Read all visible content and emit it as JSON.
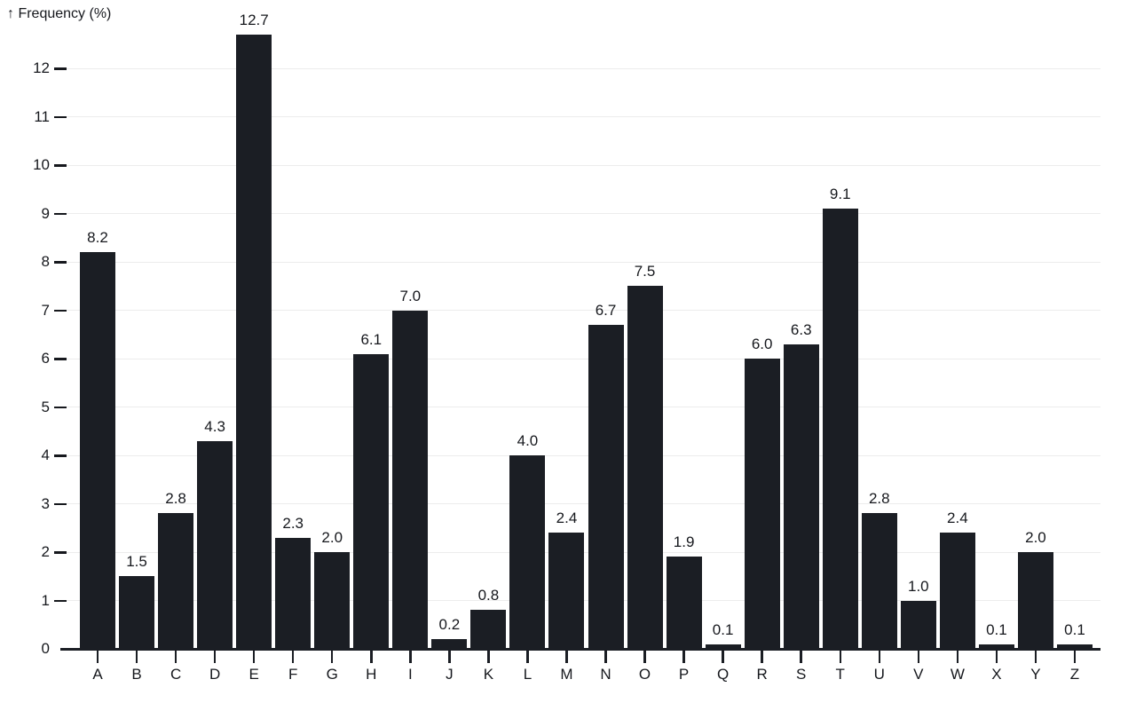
{
  "chart_data": {
    "type": "bar",
    "title": "↑ Frequency (%)",
    "ylabel": "Frequency (%)",
    "categories": [
      "A",
      "B",
      "C",
      "D",
      "E",
      "F",
      "G",
      "H",
      "I",
      "J",
      "K",
      "L",
      "M",
      "N",
      "O",
      "P",
      "Q",
      "R",
      "S",
      "T",
      "U",
      "V",
      "W",
      "X",
      "Y",
      "Z"
    ],
    "values": [
      8.2,
      1.5,
      2.8,
      4.3,
      12.7,
      2.3,
      2.0,
      6.1,
      7.0,
      0.2,
      0.8,
      4.0,
      2.4,
      6.7,
      7.5,
      1.9,
      0.1,
      6.0,
      6.3,
      9.1,
      2.8,
      1.0,
      2.4,
      0.1,
      2.0,
      0.1
    ],
    "value_labels": [
      "8.2",
      "1.5",
      "2.8",
      "4.3",
      "12.7",
      "2.3",
      "2.0",
      "6.1",
      "7.0",
      "0.2",
      "0.8",
      "4.0",
      "2.4",
      "6.7",
      "7.5",
      "1.9",
      "0.1",
      "6.0",
      "6.3",
      "9.1",
      "2.8",
      "1.0",
      "2.4",
      "0.1",
      "2.0",
      "0.1"
    ],
    "yticks": [
      0,
      1,
      2,
      3,
      4,
      5,
      6,
      7,
      8,
      9,
      10,
      11,
      12
    ],
    "ylim": [
      0,
      12.7
    ],
    "grid": true,
    "legend": "none",
    "colors": {
      "bar": "#1b1e24",
      "grid": "#ececec",
      "axis": "#1b1e24",
      "text": "#16181d",
      "background": "#ffffff"
    }
  }
}
